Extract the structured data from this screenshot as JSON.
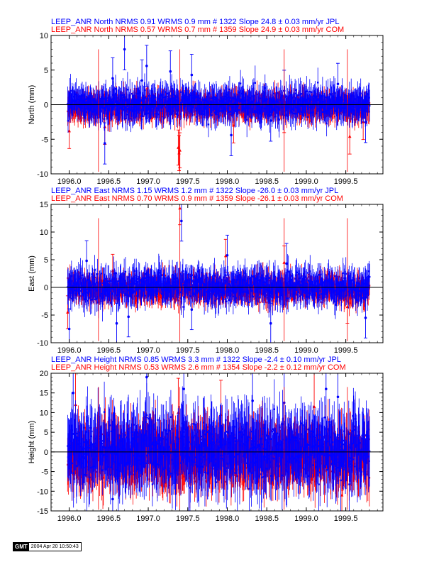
{
  "colors": {
    "jpl": "#0000ff",
    "com": "#ff0000",
    "axis": "#000000"
  },
  "footer": {
    "logo": "GMT",
    "timestamp": "2004 Apr 20 10:50:43"
  },
  "chart_data": [
    {
      "type": "scatter",
      "component": "North",
      "titles": [
        "LEEP_ANR North NRMS 0.91 WRMS  0.9 mm # 1322 Slope   24.8 ±  0.03 mm/yr JPL",
        "LEEP_ANR North NRMS 0.57 WRMS  0.7 mm # 1359 Slope   24.9 ±  0.03 mm/yr COM"
      ],
      "ylabel": "North (mm)",
      "xlim": [
        1995.77,
        1999.97
      ],
      "ylim": [
        -10,
        10
      ],
      "yticks": [
        -10,
        -5,
        0,
        5,
        10
      ],
      "xticks": [
        "1996.0",
        "1996.5",
        "1997.0",
        "1997.5",
        "1998.0",
        "1998.5",
        "1999.0",
        "1999.5"
      ],
      "series": [
        {
          "name": "JPL",
          "n": 1322,
          "rms": 0.9,
          "color": "#0000ff",
          "outliers": [
            [
              1996.45,
              -5.6
            ],
            [
              1996.55,
              3.8
            ],
            [
              1996.7,
              8.0
            ],
            [
              1996.92,
              3.5
            ],
            [
              1996.98,
              5.6
            ],
            [
              1997.28,
              4.8
            ],
            [
              1997.55,
              4.3
            ],
            [
              1998.05,
              -4.4
            ],
            [
              1998.55,
              -2.3
            ],
            [
              1998.72,
              2.0
            ],
            [
              1999.4,
              3.0
            ],
            [
              1999.75,
              -2.5
            ]
          ]
        },
        {
          "name": "COM",
          "n": 1359,
          "rms": 0.7,
          "color": "#ff0000",
          "outliers": [
            [
              1996.0,
              -3.8
            ],
            [
              1996.45,
              -3.2
            ],
            [
              1997.38,
              -6.2
            ],
            [
              1997.39,
              -7.0
            ],
            [
              1997.4,
              -6.6
            ],
            [
              1998.08,
              -3.0
            ],
            [
              1998.72,
              -1.5
            ],
            [
              1999.55,
              -4.6
            ],
            [
              1999.72,
              -2.5
            ]
          ]
        }
      ]
    },
    {
      "type": "scatter",
      "component": "East",
      "titles": [
        "LEEP_ANR East NRMS 1.15 WRMS  1.2 mm # 1322 Slope  -26.0 ±  0.03 mm/yr JPL",
        "LEEP_ANR East NRMS 0.70 WRMS  0.9 mm # 1359 Slope  -26.1 ±  0.03 mm/yr COM"
      ],
      "ylabel": "East (mm)",
      "xlim": [
        1995.77,
        1999.97
      ],
      "ylim": [
        -10,
        15
      ],
      "yticks": [
        -10,
        -5,
        0,
        5,
        10,
        15
      ],
      "xticks": [
        "1996.0",
        "1996.5",
        "1997.0",
        "1997.5",
        "1998.0",
        "1998.5",
        "1999.0",
        "1999.5"
      ],
      "series": [
        {
          "name": "JPL",
          "n": 1322,
          "rms": 1.2,
          "color": "#0000ff",
          "outliers": [
            [
              1996.0,
              -7.5
            ],
            [
              1996.22,
              4.8
            ],
            [
              1996.6,
              -6.5
            ],
            [
              1996.75,
              -5.3
            ],
            [
              1997.42,
              12.0
            ],
            [
              1997.55,
              -4.0
            ],
            [
              1998.0,
              5.8
            ],
            [
              1998.55,
              -6.5
            ],
            [
              1998.75,
              4.3
            ],
            [
              1999.75,
              -5.5
            ]
          ]
        },
        {
          "name": "COM",
          "n": 1359,
          "rms": 0.9,
          "color": "#ff0000",
          "outliers": [
            [
              1995.98,
              -4.5
            ],
            [
              1996.55,
              3.0
            ],
            [
              1997.4,
              14.3
            ],
            [
              1997.98,
              5.7
            ],
            [
              1998.72,
              4.5
            ],
            [
              1999.52,
              -3.5
            ]
          ]
        }
      ]
    },
    {
      "type": "scatter",
      "component": "Height",
      "titles": [
        "LEEP_ANR Height NRMS 0.85 WRMS  3.3 mm # 1322 Slope   -2.4 ±  0.10 mm/yr JPL",
        "LEEP_ANR Height NRMS 0.53 WRMS  2.6 mm # 1354 Slope   -2.2 ±  0.12 mm/yr COM"
      ],
      "ylabel": "Height (mm)",
      "xlim": [
        1995.77,
        1999.97
      ],
      "ylim": [
        -15,
        20
      ],
      "yticks": [
        -15,
        -10,
        -5,
        0,
        5,
        10,
        15,
        20
      ],
      "xticks": [
        "1996.0",
        "1996.5",
        "1997.0",
        "1997.5",
        "1998.0",
        "1998.5",
        "1999.0",
        "1999.5"
      ],
      "series": [
        {
          "name": "JPL",
          "n": 1322,
          "rms": 3.3,
          "color": "#0000ff",
          "outliers": [
            [
              1996.05,
              15.0
            ],
            [
              1996.55,
              -12.0
            ],
            [
              1996.98,
              19.0
            ],
            [
              1997.45,
              16.0
            ],
            [
              1998.32,
              13.0
            ],
            [
              1998.72,
              12.5
            ],
            [
              1999.25,
              16.0
            ],
            [
              1999.4,
              14.0
            ]
          ]
        },
        {
          "name": "COM",
          "n": 1354,
          "rms": 2.6,
          "color": "#ff0000",
          "outliers": [
            [
              1996.08,
              12.0
            ],
            [
              1997.38,
              10.0
            ],
            [
              1997.92,
              9.5
            ],
            [
              1999.1,
              11.5
            ],
            [
              1999.45,
              -11.0
            ]
          ]
        }
      ]
    }
  ]
}
